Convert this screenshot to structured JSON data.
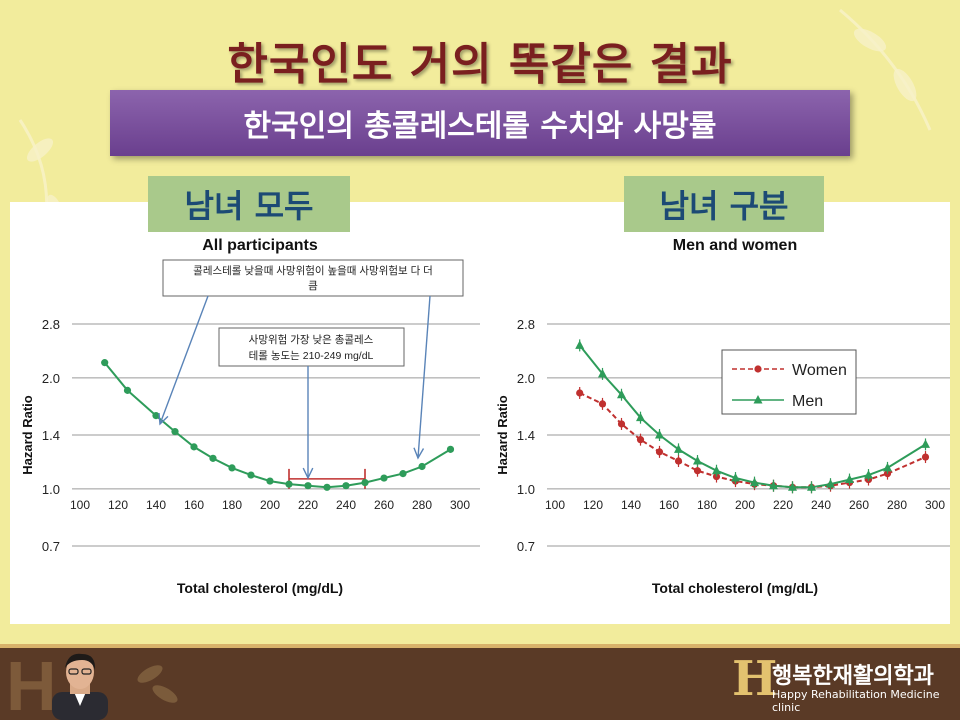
{
  "slide": {
    "title": "한국인도 거의 똑같은 결과",
    "subtitle": "한국인의 총콜레스테롤 수치와 사망률",
    "label_left": "남녀 모두",
    "label_right": "남녀 구분",
    "footer": {
      "logo_letter": "H",
      "logo_name": "행복한재활의학과",
      "logo_en": "Happy Rehabilitation Medicine clinic"
    }
  },
  "colors": {
    "green": "#2e9c5a",
    "red": "#c0302f",
    "annotation": "#5a84b8",
    "bar": "#c0302f"
  },
  "chart_data": [
    {
      "type": "line",
      "title": "All participants",
      "xlabel": "Total cholesterol (mg/dL)",
      "ylabel": "Hazard Ratio",
      "xlim": [
        100,
        300
      ],
      "xticks": [
        "100",
        "120",
        "140",
        "160",
        "180",
        "200",
        "220",
        "240",
        "260",
        "280",
        "300"
      ],
      "y_scale": "log",
      "yticks": [
        "2.8",
        "2.0",
        "1.4",
        "1.0",
        "0.7"
      ],
      "grid": "horizontal",
      "annotations": [
        "콜레스테롤 낮을때 사망위험이 높을때 사망위험보 다 더 큼",
        "사망위험 가장 낮은 총콜레스 테롤 농도는 210-249 mg/dL"
      ],
      "min_range": [
        210,
        250
      ],
      "series": [
        {
          "x": [
            113,
            125,
            140,
            150,
            160,
            170,
            180,
            190,
            200,
            210,
            220,
            230,
            240,
            250,
            260,
            270,
            280,
            295
          ],
          "y": [
            2.2,
            1.85,
            1.58,
            1.43,
            1.3,
            1.21,
            1.14,
            1.09,
            1.05,
            1.03,
            1.02,
            1.01,
            1.02,
            1.04,
            1.07,
            1.1,
            1.15,
            1.28
          ]
        }
      ]
    },
    {
      "type": "line",
      "title": "Men and women",
      "xlabel": "Total cholesterol (mg/dL)",
      "ylabel": "Hazard Ratio",
      "xlim": [
        100,
        300
      ],
      "xticks": [
        "100",
        "120",
        "140",
        "160",
        "180",
        "200",
        "220",
        "240",
        "260",
        "280",
        "300"
      ],
      "y_scale": "log",
      "yticks": [
        "2.8",
        "2.0",
        "1.4",
        "1.0",
        "0.7"
      ],
      "grid": "horizontal",
      "legend": "top-center",
      "series": [
        {
          "name": "Women",
          "style": "dashed",
          "marker": "circle",
          "x": [
            113,
            125,
            135,
            145,
            155,
            165,
            175,
            185,
            195,
            205,
            215,
            225,
            235,
            245,
            255,
            265,
            275,
            295
          ],
          "y": [
            1.82,
            1.7,
            1.5,
            1.36,
            1.26,
            1.19,
            1.12,
            1.08,
            1.05,
            1.03,
            1.02,
            1.01,
            1.01,
            1.02,
            1.04,
            1.06,
            1.1,
            1.22
          ]
        },
        {
          "name": "Men",
          "style": "solid",
          "marker": "triangle",
          "x": [
            113,
            125,
            135,
            145,
            155,
            165,
            175,
            185,
            195,
            205,
            215,
            225,
            235,
            245,
            255,
            265,
            275,
            295
          ],
          "y": [
            2.45,
            2.05,
            1.8,
            1.56,
            1.4,
            1.28,
            1.19,
            1.12,
            1.07,
            1.04,
            1.02,
            1.01,
            1.01,
            1.03,
            1.06,
            1.09,
            1.14,
            1.32
          ]
        }
      ]
    }
  ]
}
